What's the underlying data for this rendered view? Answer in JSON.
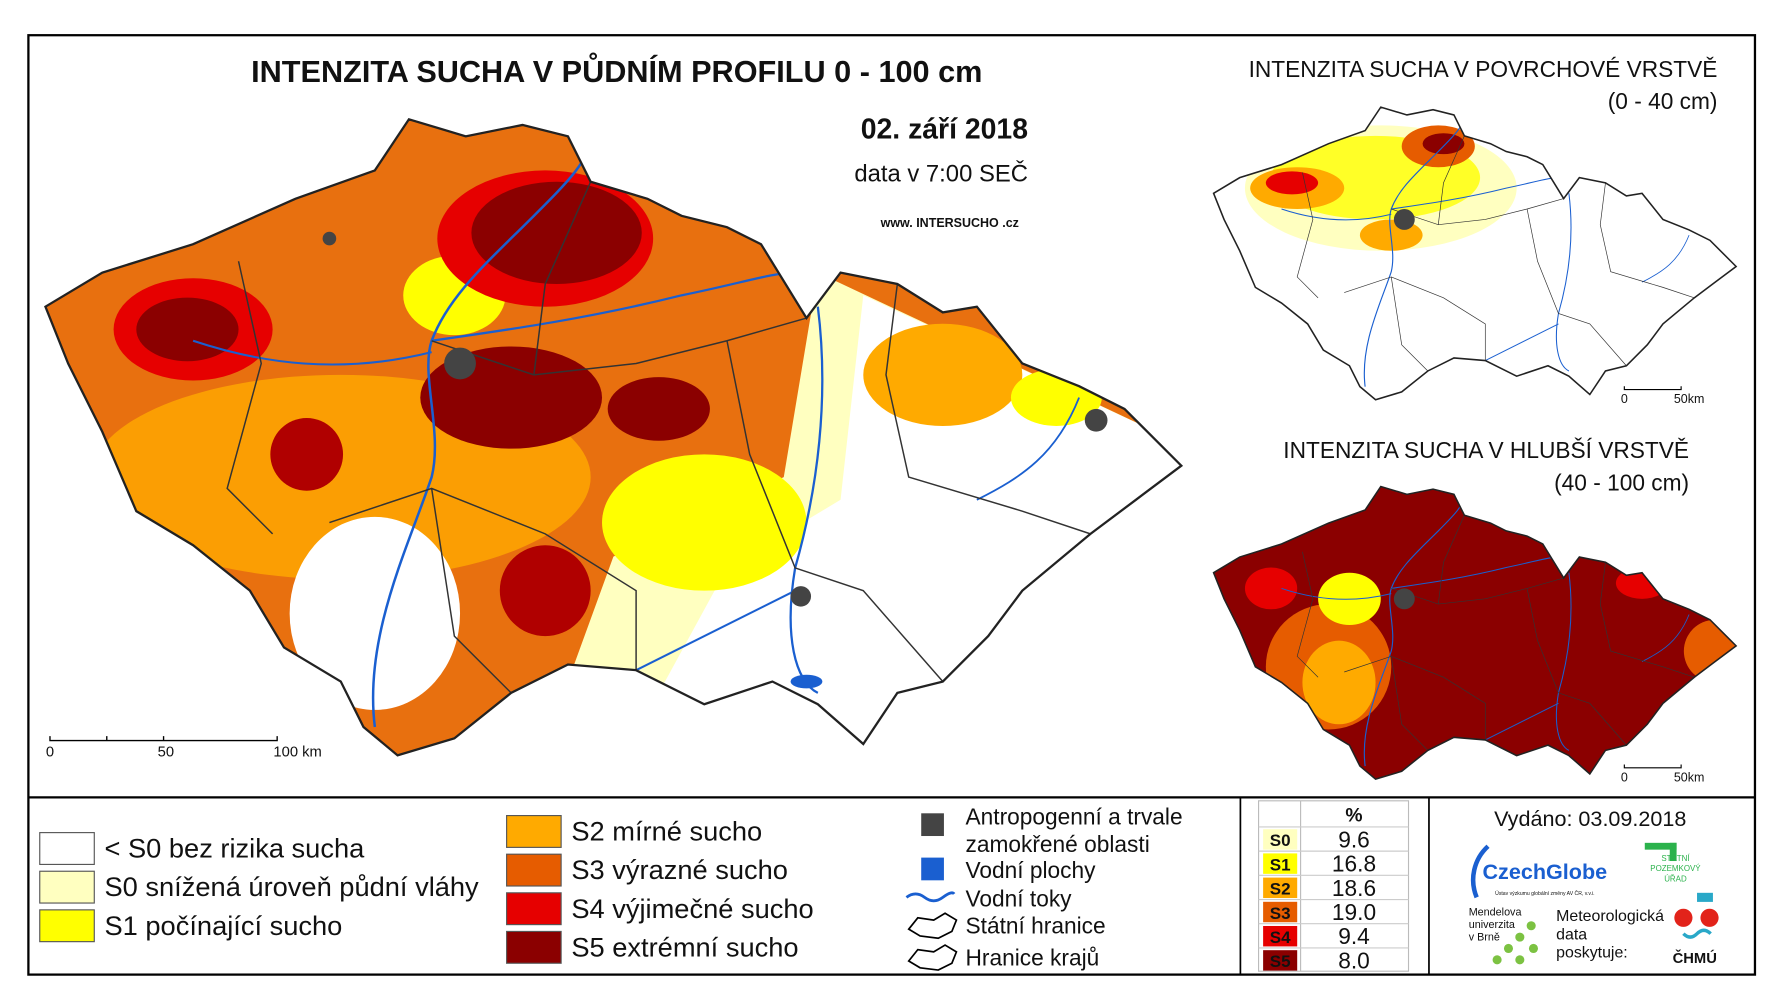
{
  "main_map": {
    "title": "INTENZITA SUCHA V PŮDNÍM PROFILU 0 - 100 cm",
    "date": "02. září 2018",
    "data_time": "data v 7:00 SEČ",
    "website": "www. INTERSUCHO .cz",
    "scale": [
      "0",
      "50",
      "100 km"
    ]
  },
  "inset_maps": [
    {
      "title": "INTENZITA SUCHA V POVRCHOVÉ VRSTVĚ",
      "depth": "(0 - 40 cm)",
      "scale": [
        "0",
        "50km"
      ]
    },
    {
      "title": "INTENZITA SUCHA V HLUBŠÍ VRSTVĚ",
      "depth": "(40 - 100 cm)",
      "scale": [
        "0",
        "50km"
      ]
    }
  ],
  "legend": {
    "drought_classes": [
      {
        "label": "< S0 bez rizika sucha",
        "color": "#ffffff"
      },
      {
        "label": "S0 snížená úroveň půdní vláhy",
        "color": "#ffffc0"
      },
      {
        "label": "S1 počínající sucho",
        "color": "#ffff00"
      },
      {
        "label": "S2 mírné sucho",
        "color": "#ffaa00"
      },
      {
        "label": "S3 výrazné sucho",
        "color": "#e65c00"
      },
      {
        "label": "S4 výjimečné sucho",
        "color": "#e60000"
      },
      {
        "label": "S5 extrémní sucho",
        "color": "#8b0000"
      }
    ],
    "symbols": [
      {
        "label": "Antropogenní a trvale",
        "label2": "zamokřené oblasti"
      },
      {
        "label": "Vodní plochy"
      },
      {
        "label": "Vodní toky"
      },
      {
        "label": "Státní hranice"
      },
      {
        "label": "Hranice krajů"
      }
    ]
  },
  "table": {
    "header": "%",
    "rows": [
      [
        "S0",
        "9.6"
      ],
      [
        "S1",
        "16.8"
      ],
      [
        "S2",
        "18.6"
      ],
      [
        "S3",
        "19.0"
      ],
      [
        "S4",
        "9.4"
      ],
      [
        "S5",
        "8.0"
      ]
    ]
  },
  "footer": {
    "issued": "Vydáno: 03.09.2018",
    "czechglobe": "CzechGlobe",
    "czechglobe_sub": "Ústav výzkumu globální změny AV ČR, v.v.i.",
    "spu": [
      "STÁTNÍ",
      "POZEMKOVÝ",
      "ÚŘAD"
    ],
    "mendelu": [
      "Mendelova",
      "univerzita",
      "v Brně"
    ],
    "provider": [
      "Meteorologická",
      "data",
      "poskytuje:"
    ],
    "chmu": "ČHMÚ"
  }
}
